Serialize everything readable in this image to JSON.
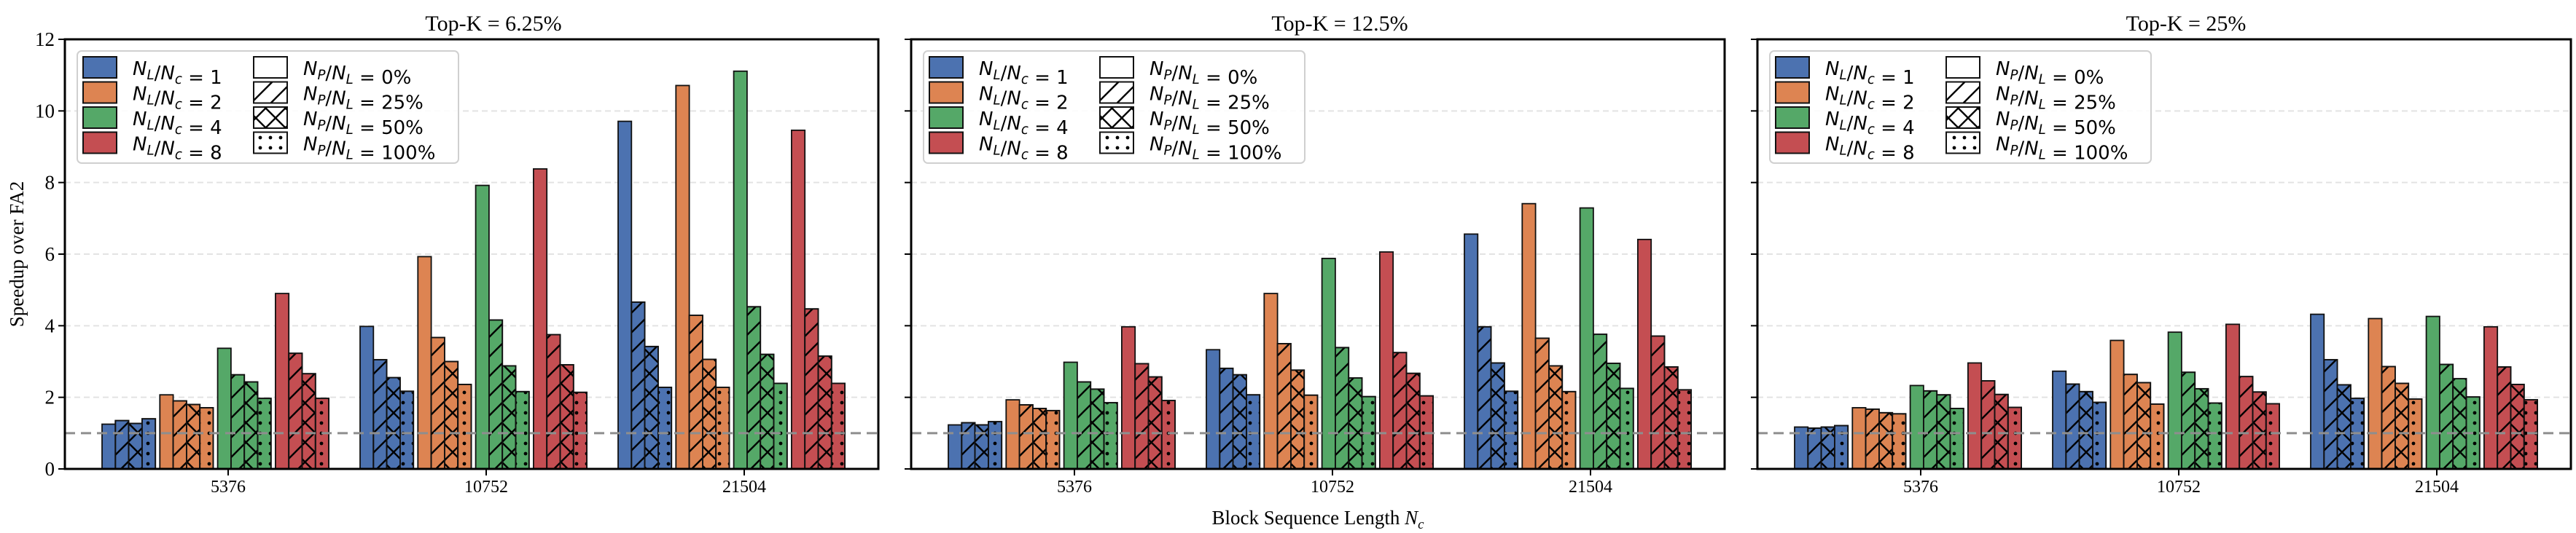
{
  "chart_data": {
    "type": "bar",
    "ylabel": "Speedup over FA2",
    "xlabel": "Block Sequence Length N_c",
    "ylim": [
      0,
      12
    ],
    "yticks": [
      "0",
      "2",
      "4",
      "6",
      "8",
      "10",
      "12"
    ],
    "grid": "horizontal dashed",
    "reference_line": 1.0,
    "categories": [
      "5376",
      "10752",
      "21504"
    ],
    "color_series": [
      {
        "name": "N_L/N_c = 1",
        "color": "#4C72B0"
      },
      {
        "name": "N_L/N_c = 2",
        "color": "#DD8452"
      },
      {
        "name": "N_L/N_c = 4",
        "color": "#55A868"
      },
      {
        "name": "N_L/N_c = 8",
        "color": "#C44E52"
      }
    ],
    "hatch_series": [
      {
        "name": "N_P/N_L = 0%",
        "hatch": "none"
      },
      {
        "name": "N_P/N_L = 25%",
        "hatch": "diagonal"
      },
      {
        "name": "N_P/N_L = 50%",
        "hatch": "cross"
      },
      {
        "name": "N_P/N_L = 100%",
        "hatch": "dots"
      }
    ],
    "legend_position": "top-left",
    "panels": [
      {
        "title": "Top-K = 6.25%",
        "values": [
          [
            [
              1.25,
              1.35,
              1.27,
              1.4
            ],
            [
              2.07,
              1.9,
              1.8,
              1.71
            ],
            [
              3.37,
              2.63,
              2.43,
              1.97
            ],
            [
              4.9,
              3.23,
              2.66,
              1.97
            ]
          ],
          [
            [
              3.98,
              3.05,
              2.55,
              2.17
            ],
            [
              5.93,
              3.67,
              3.0,
              2.36
            ],
            [
              7.92,
              4.16,
              2.88,
              2.16
            ],
            [
              8.38,
              3.75,
              2.91,
              2.14
            ]
          ],
          [
            [
              9.71,
              4.66,
              3.42,
              2.28
            ],
            [
              10.71,
              4.29,
              3.06,
              2.28
            ],
            [
              11.11,
              4.53,
              3.2,
              2.39
            ],
            [
              9.46,
              4.47,
              3.15,
              2.39
            ]
          ]
        ]
      },
      {
        "title": "Top-K = 12.5%",
        "values": [
          [
            [
              1.23,
              1.29,
              1.23,
              1.32
            ],
            [
              1.93,
              1.79,
              1.69,
              1.63
            ],
            [
              2.98,
              2.43,
              2.23,
              1.85
            ],
            [
              3.97,
              2.94,
              2.57,
              1.91
            ]
          ],
          [
            [
              3.33,
              2.81,
              2.63,
              2.07
            ],
            [
              4.9,
              3.5,
              2.76,
              2.06
            ],
            [
              5.88,
              3.39,
              2.54,
              2.02
            ],
            [
              6.06,
              3.25,
              2.67,
              2.04
            ]
          ],
          [
            [
              6.56,
              3.97,
              2.96,
              2.17
            ],
            [
              7.41,
              3.65,
              2.88,
              2.16
            ],
            [
              7.29,
              3.76,
              2.95,
              2.25
            ],
            [
              6.41,
              3.71,
              2.85,
              2.21
            ]
          ]
        ]
      },
      {
        "title": "Top-K = 25%",
        "values": [
          [
            [
              1.17,
              1.14,
              1.17,
              1.21
            ],
            [
              1.71,
              1.67,
              1.57,
              1.54
            ],
            [
              2.33,
              2.18,
              2.07,
              1.69
            ],
            [
              2.96,
              2.46,
              2.08,
              1.72
            ]
          ],
          [
            [
              2.73,
              2.37,
              2.16,
              1.86
            ],
            [
              3.59,
              2.64,
              2.41,
              1.81
            ],
            [
              3.82,
              2.7,
              2.24,
              1.84
            ],
            [
              4.04,
              2.58,
              2.15,
              1.82
            ]
          ],
          [
            [
              4.32,
              3.05,
              2.35,
              1.97
            ],
            [
              4.2,
              2.86,
              2.39,
              1.95
            ],
            [
              4.26,
              2.92,
              2.52,
              2.01
            ],
            [
              3.97,
              2.85,
              2.36,
              1.93
            ]
          ]
        ]
      }
    ]
  }
}
